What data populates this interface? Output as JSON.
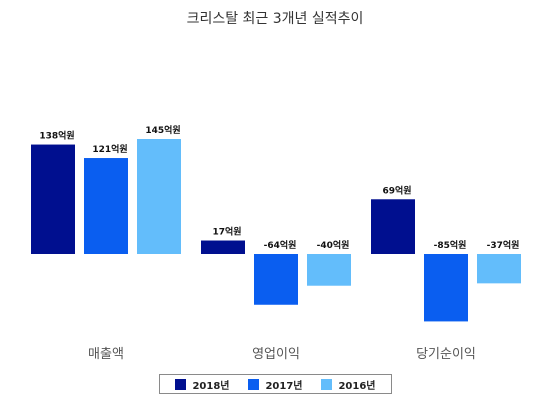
{
  "chart_data": {
    "type": "bar",
    "title": "크리스탈 최근 3개년 실적추이",
    "categories": [
      "매출액",
      "영업이익",
      "당기순이익"
    ],
    "unit": "억원",
    "series": [
      {
        "name": "2018년",
        "color": "#000f8f",
        "values": [
          138,
          17,
          69
        ]
      },
      {
        "name": "2017년",
        "color": "#0a5ef0",
        "values": [
          121,
          -64,
          -85
        ]
      },
      {
        "name": "2016년",
        "color": "#63bdfb",
        "values": [
          145,
          -40,
          -37
        ]
      }
    ],
    "data_labels": [
      [
        "138억원",
        "17억원",
        "69억원"
      ],
      [
        "121억원",
        "-64억원",
        "-85억원"
      ],
      [
        "145억원",
        "-40억원",
        "-37억원"
      ]
    ],
    "legend_position": "bottom",
    "grid": false
  }
}
